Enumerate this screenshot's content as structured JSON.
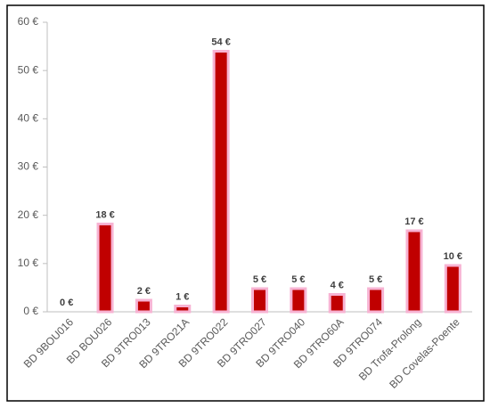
{
  "chart_data": {
    "type": "bar",
    "categories": [
      "BD 9BOU016",
      "BD BOU026",
      "BD 9TRO013",
      "BD 9TRO21A",
      "BD 9TRO022",
      "BD 9TRO027",
      "BD 9TRO040",
      "BD 9TRO60A",
      "BD 9TRO074",
      "BD Trofa-Prolong",
      "BD Covelas-Poente"
    ],
    "values": [
      0,
      18.2,
      2.4,
      1.2,
      54,
      4.8,
      4.8,
      3.6,
      4.8,
      16.8,
      9.6
    ],
    "value_labels": [
      "0 €",
      "18 €",
      "2 €",
      "1 €",
      "54 €",
      "5 €",
      "5 €",
      "4 €",
      "5 €",
      "17 €",
      "10 €"
    ],
    "color": "#c00000",
    "ylim": [
      0,
      60
    ],
    "yticks": [
      {
        "value": 0,
        "label": "0 €"
      },
      {
        "value": 10,
        "label": "10 €"
      },
      {
        "value": 20,
        "label": "20 €"
      },
      {
        "value": 30,
        "label": "30 €"
      },
      {
        "value": 40,
        "label": "40 €"
      },
      {
        "value": 50,
        "label": "50 €"
      },
      {
        "value": 60,
        "label": "60 €"
      }
    ],
    "grid": false
  }
}
